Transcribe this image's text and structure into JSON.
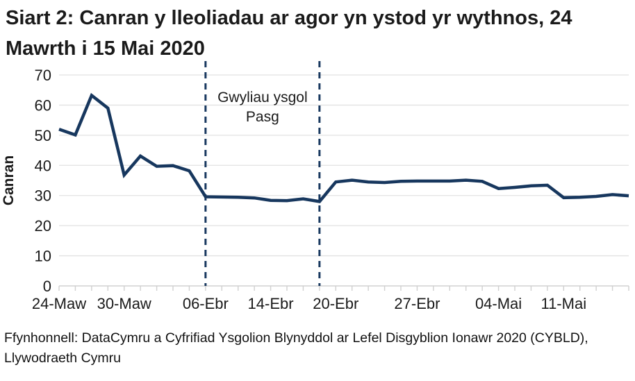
{
  "title": "Siart 2: Canran y lleoliadau ar agor yn ystod yr wythnos, 24 Mawrth i 15 Mai 2020",
  "footer": {
    "source": "Ffynhonnell: DataCymru a Cyfrifiad Ysgolion Blynyddol ar Lefel Disgyblion Ionawr 2020 (CYBLD), Llywodraeth Cymru"
  },
  "chart_data": {
    "type": "line",
    "title": "Siart 2: Canran y lleoliadau ar agor yn ystod yr wythnos, 24 Mawrth i 15 Mai 2020",
    "xlabel": "",
    "ylabel": "Canran",
    "ylim": [
      0,
      70
    ],
    "ytick_interval": 10,
    "grid": true,
    "legend": "none",
    "x": [
      "24-Maw",
      "25-Maw",
      "26-Maw",
      "27-Maw",
      "30-Maw",
      "31-Maw",
      "01-Ebr",
      "02-Ebr",
      "03-Ebr",
      "06-Ebr",
      "07-Ebr",
      "08-Ebr",
      "09-Ebr",
      "14-Ebr",
      "15-Ebr",
      "16-Ebr",
      "17-Ebr",
      "20-Ebr",
      "21-Ebr",
      "22-Ebr",
      "23-Ebr",
      "24-Ebr",
      "27-Ebr",
      "28-Ebr",
      "29-Ebr",
      "30-Ebr",
      "01-Mai",
      "04-Mai",
      "05-Mai",
      "06-Mai",
      "07-Mai",
      "11-Mai",
      "12-Mai",
      "13-Mai",
      "14-Mai",
      "15-Mai"
    ],
    "series": [
      {
        "name": "Canran y lleoliadau ar agor",
        "values": [
          52,
          50.1,
          63.2,
          59,
          36.8,
          43.1,
          39.7,
          39.9,
          38.2,
          29.6,
          29.5,
          29.4,
          29.2,
          28.4,
          28.3,
          28.9,
          28,
          34.5,
          35.1,
          34.5,
          34.3,
          34.7,
          34.8,
          34.8,
          34.8,
          35.1,
          34.7,
          32.3,
          32.7,
          33.2,
          33.4,
          29.3,
          29.4,
          29.7,
          30.3,
          29.9
        ]
      }
    ],
    "x_tick_labels": [
      {
        "index": 0,
        "label": "24-Maw"
      },
      {
        "index": 4,
        "label": "30-Maw"
      },
      {
        "index": 9,
        "label": "06-Ebr"
      },
      {
        "index": 13,
        "label": "14-Ebr"
      },
      {
        "index": 17,
        "label": "20-Ebr"
      },
      {
        "index": 22,
        "label": "27-Ebr"
      },
      {
        "index": 27,
        "label": "04-Mai"
      },
      {
        "index": 31,
        "label": "11-Mai"
      }
    ],
    "reference_lines": {
      "style": "dashed",
      "indices": [
        9,
        16
      ],
      "meaning": "Gwyliau ysgol Pasg"
    },
    "annotation": {
      "lines": [
        "Gwyliau ysgol",
        "Pasg"
      ]
    },
    "colors": {
      "line": "#17375e",
      "reference_line": "#17375e",
      "grid": "#e2e2e2",
      "axis": "#d0d0d0",
      "text": "#1a1a1a"
    }
  }
}
